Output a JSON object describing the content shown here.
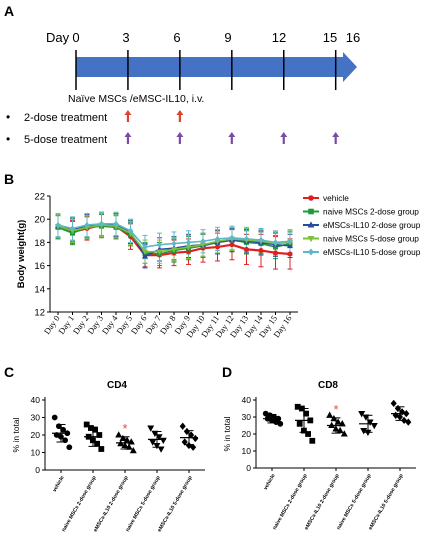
{
  "panel_a": {
    "letter": "A",
    "day_label": "Day",
    "days": [
      "0",
      "3",
      "6",
      "9",
      "12",
      "15",
      "16"
    ],
    "injection_label": "Naïve MSCs /eMSC-IL10, i.v.",
    "rows": [
      {
        "bullet": "•",
        "label": "2-dose treatment",
        "arrow_color": "#e04030",
        "doses_on_days": [
          3,
          6
        ]
      },
      {
        "bullet": "•",
        "label": "5-dose treatment",
        "arrow_color": "#7a4aa8",
        "doses_on_days": [
          3,
          6,
          9,
          12,
          15
        ]
      }
    ],
    "timeline_color": "#4472c4"
  },
  "panel_b": {
    "letter": "B"
  },
  "panel_c": {
    "letter": "C"
  },
  "panel_d": {
    "letter": "D"
  },
  "chart_data": [
    {
      "type": "line",
      "ylabel": "Body weight(g)",
      "ylim": [
        12,
        22
      ],
      "yticks": [
        12,
        14,
        16,
        18,
        20,
        22
      ],
      "categories": [
        "Day 0",
        "Day 1",
        "Day 2",
        "Day 3",
        "Day 4",
        "Day 5",
        "Day 6",
        "Day 7",
        "Day 8",
        "Day 9",
        "Day 10",
        "Day 11",
        "Day 12",
        "Day 13",
        "Day 14",
        "Day 15",
        "Day 16"
      ],
      "legend_position": "top-right",
      "series": [
        {
          "name": "vehicle",
          "color": "#e02020",
          "marker": "circle",
          "values": [
            19.4,
            18.9,
            19.2,
            19.5,
            19.4,
            18.5,
            16.9,
            16.9,
            17.1,
            17.2,
            17.5,
            17.6,
            17.8,
            17.4,
            17.3,
            17.1,
            17.0
          ],
          "errors": [
            1.0,
            1.0,
            1.0,
            1.0,
            1.0,
            1.1,
            1.0,
            1.1,
            1.1,
            1.1,
            1.2,
            1.2,
            1.3,
            1.3,
            1.4,
            1.4,
            1.3
          ]
        },
        {
          "name": "naive MSCs 2-dose group",
          "color": "#1f9a3a",
          "marker": "square",
          "values": [
            19.3,
            18.8,
            19.3,
            19.4,
            19.3,
            18.7,
            17.1,
            17.0,
            17.3,
            17.5,
            17.7,
            18.0,
            18.2,
            18.0,
            17.9,
            17.6,
            17.9
          ],
          "errors": [
            1.0,
            1.0,
            1.0,
            1.0,
            1.0,
            1.0,
            0.9,
            1.0,
            1.0,
            1.0,
            1.0,
            1.0,
            1.0,
            1.0,
            1.0,
            1.0,
            1.0
          ]
        },
        {
          "name": "eMSCs-IL10 2-dose group",
          "color": "#2b4b9b",
          "marker": "triangle",
          "values": [
            19.4,
            19.1,
            19.4,
            19.6,
            19.5,
            18.9,
            16.8,
            17.4,
            17.5,
            17.7,
            17.8,
            18.0,
            18.2,
            18.1,
            18.0,
            17.8,
            17.7
          ],
          "errors": [
            1.0,
            1.0,
            1.0,
            1.0,
            1.0,
            1.0,
            1.0,
            1.0,
            1.0,
            1.0,
            1.0,
            1.0,
            1.0,
            1.0,
            1.0,
            1.0,
            1.0
          ]
        },
        {
          "name": "naive MSCs 5-dose group",
          "color": "#7fbf3f",
          "marker": "triangle-down",
          "values": [
            19.4,
            19.0,
            19.3,
            19.5,
            19.4,
            18.8,
            17.2,
            17.2,
            17.4,
            17.6,
            17.8,
            18.1,
            18.3,
            18.2,
            18.1,
            17.9,
            18.0
          ],
          "errors": [
            1.0,
            1.0,
            1.0,
            1.0,
            1.0,
            1.0,
            1.0,
            1.0,
            1.0,
            1.0,
            1.0,
            1.0,
            1.0,
            1.0,
            1.0,
            1.0,
            1.0
          ]
        },
        {
          "name": "eMSCs-IL10 5-dose group",
          "color": "#5fb8c8",
          "marker": "diamond",
          "values": [
            19.5,
            19.2,
            19.5,
            19.6,
            19.6,
            19.0,
            17.6,
            17.8,
            17.9,
            18.0,
            18.1,
            18.3,
            18.4,
            18.3,
            18.2,
            18.0,
            18.1
          ],
          "errors": [
            1.0,
            1.0,
            1.0,
            1.0,
            1.0,
            1.0,
            1.0,
            1.0,
            1.0,
            1.0,
            1.0,
            1.0,
            1.0,
            1.0,
            1.0,
            1.0,
            1.0
          ]
        }
      ]
    },
    {
      "type": "scatter",
      "title": "CD4",
      "ylabel": "% in total",
      "ylim": [
        0,
        40
      ],
      "yticks": [
        0,
        10,
        20,
        30,
        40
      ],
      "categories": [
        "vehicle",
        "naive MSCs 2-dose group",
        "eMSCs-IL10 2-dose group",
        "naive MSCs 5-dose group",
        "eMSCs-IL10 5-dose group"
      ],
      "markers": [
        "circle",
        "square",
        "triangle",
        "triangle-down",
        "diamond"
      ],
      "means": [
        21,
        19,
        15.5,
        17.5,
        18.5
      ],
      "sd": [
        5,
        5.5,
        3.5,
        4.5,
        4
      ],
      "significance": [
        null,
        null,
        "*",
        null,
        null
      ],
      "points": [
        [
          30,
          25,
          23,
          21,
          20,
          19,
          17,
          13
        ],
        [
          26,
          24,
          23,
          20,
          19,
          17,
          15,
          12
        ],
        [
          20,
          18,
          17,
          16,
          15,
          14,
          13,
          11
        ],
        [
          24,
          21,
          19,
          17,
          16,
          14,
          12
        ],
        [
          25,
          22,
          20,
          18,
          16,
          14,
          13
        ]
      ]
    },
    {
      "type": "scatter",
      "title": "CD8",
      "ylabel": "% in total",
      "ylim": [
        0,
        40
      ],
      "yticks": [
        0,
        10,
        20,
        30,
        40
      ],
      "categories": [
        "vehicle",
        "naive MSCs 2-dose group",
        "eMSCs-IL10 2-dose group",
        "naive MSCs 5-dose group",
        "eMSCs-IL10 5-dose group"
      ],
      "markers": [
        "circle",
        "square",
        "triangle",
        "triangle-down",
        "diamond"
      ],
      "means": [
        29,
        28,
        25,
        26,
        32
      ],
      "sd": [
        2.5,
        7,
        4.5,
        5,
        4
      ],
      "significance": [
        null,
        null,
        "*",
        null,
        null
      ],
      "points": [
        [
          32,
          31,
          30,
          29,
          29,
          28,
          27,
          26
        ],
        [
          36,
          35,
          32,
          28,
          26,
          22,
          20,
          16
        ],
        [
          31,
          29,
          27,
          26,
          25,
          23,
          22,
          20
        ],
        [
          32,
          30,
          27,
          25,
          22,
          21
        ],
        [
          38,
          35,
          33,
          32,
          31,
          30,
          28,
          27
        ]
      ]
    }
  ]
}
